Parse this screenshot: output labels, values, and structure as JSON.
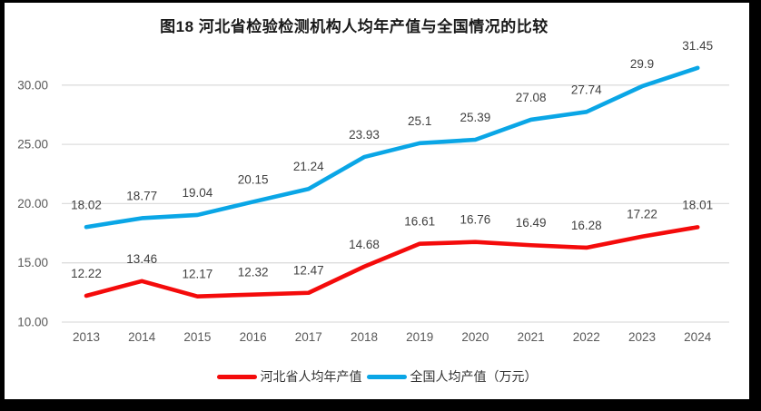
{
  "page": {
    "background": "#ffffff",
    "frame_color": "#000000"
  },
  "chart_data": {
    "type": "line",
    "title": "图18 河北省检验检测机构人均年产值与全国情况的比较",
    "categories": [
      "2013",
      "2014",
      "2015",
      "2016",
      "2017",
      "2018",
      "2019",
      "2020",
      "2021",
      "2022",
      "2023",
      "2024"
    ],
    "series": [
      {
        "name": "河北省人均年产值",
        "color": "#f40b0b",
        "values": [
          12.22,
          13.46,
          12.17,
          12.32,
          12.47,
          14.68,
          16.61,
          16.76,
          16.49,
          16.28,
          17.22,
          18.01
        ],
        "labels": [
          "12.22",
          "13.46",
          "12.17",
          "12.32",
          "12.47",
          "14.68",
          "16.61",
          "16.76",
          "16.49",
          "16.28",
          "17.22",
          "18.01"
        ]
      },
      {
        "name": "全国人均产值（万元）",
        "color": "#0aa6e6",
        "values": [
          18.02,
          18.77,
          19.04,
          20.15,
          21.24,
          23.93,
          25.1,
          25.39,
          27.08,
          27.74,
          29.9,
          31.45
        ],
        "labels": [
          "18.02",
          "18.77",
          "19.04",
          "20.15",
          "21.24",
          "23.93",
          "25.1",
          "25.39",
          "27.08",
          "27.74",
          "29.9",
          "31.45"
        ]
      }
    ],
    "ylim": [
      10,
      32
    ],
    "ytick_values": [
      10,
      15,
      20,
      25,
      30
    ],
    "ytick_labels": [
      "10.00",
      "15.00",
      "20.00",
      "25.00",
      "30.00"
    ],
    "grid": true,
    "legend_position": "bottom",
    "axis_text_color": "#595959",
    "label_text_color": "#404040",
    "gridline_color": "#dddddd"
  }
}
